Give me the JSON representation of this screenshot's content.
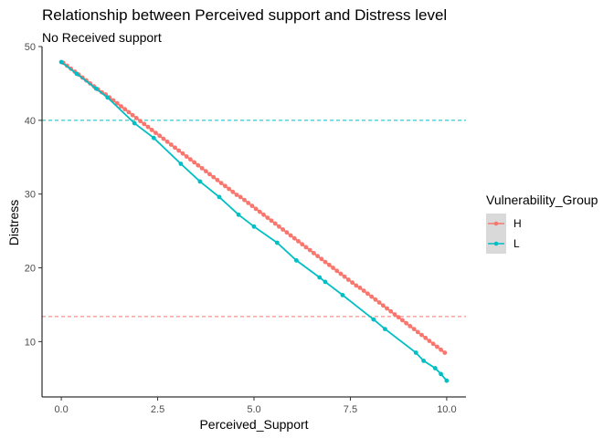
{
  "chart_data": {
    "type": "scatter",
    "title": "Relationship between Perceived support and Distress level",
    "subtitle": "No Received support",
    "xlabel": "Perceived_Support",
    "ylabel": "Distress",
    "xlim": [
      -0.5,
      10.5
    ],
    "ylim": [
      2.5,
      50
    ],
    "x_ticks": [
      0,
      2.5,
      5,
      7.5,
      10
    ],
    "x_tick_labels": [
      "0.0",
      "2.5",
      "5.0",
      "7.5",
      "10.0"
    ],
    "y_ticks": [
      10,
      20,
      30,
      40,
      50
    ],
    "y_tick_labels": [
      "10",
      "20",
      "30",
      "40",
      "50"
    ],
    "grid": false,
    "legend": {
      "title": "Vulnerability_Group",
      "placement": "right"
    },
    "series": [
      {
        "name": "H",
        "color": "#F8766D",
        "x": [
          0.05,
          0.15,
          0.25,
          0.35,
          0.45,
          0.55,
          0.65,
          0.75,
          0.85,
          0.95,
          1.05,
          1.15,
          1.25,
          1.35,
          1.45,
          1.55,
          1.65,
          1.75,
          1.85,
          1.95,
          2.05,
          2.15,
          2.25,
          2.35,
          2.45,
          2.55,
          2.65,
          2.75,
          2.85,
          2.95,
          3.05,
          3.15,
          3.25,
          3.35,
          3.45,
          3.55,
          3.65,
          3.75,
          3.85,
          3.95,
          4.05,
          4.15,
          4.25,
          4.35,
          4.45,
          4.55,
          4.65,
          4.75,
          4.85,
          4.95,
          5.05,
          5.15,
          5.25,
          5.35,
          5.45,
          5.55,
          5.65,
          5.75,
          5.85,
          5.95,
          6.05,
          6.15,
          6.25,
          6.35,
          6.45,
          6.55,
          6.65,
          6.75,
          6.85,
          6.95,
          7.05,
          7.15,
          7.25,
          7.35,
          7.45,
          7.55,
          7.65,
          7.75,
          7.85,
          7.95,
          8.05,
          8.15,
          8.25,
          8.35,
          8.45,
          8.55,
          8.65,
          8.75,
          8.85,
          8.95,
          9.05,
          9.15,
          9.25,
          9.35,
          9.45,
          9.55,
          9.65,
          9.75,
          9.85,
          9.95
        ],
        "y": [
          47.8,
          47.4,
          47.0,
          46.6,
          46.2,
          45.8,
          45.4,
          45.0,
          44.6,
          44.2,
          43.8,
          43.5,
          43.1,
          42.7,
          42.3,
          41.9,
          41.5,
          41.1,
          40.7,
          40.3,
          39.9,
          39.5,
          39.1,
          38.7,
          38.3,
          37.9,
          37.5,
          37.1,
          36.7,
          36.3,
          35.9,
          35.5,
          35.1,
          34.7,
          34.3,
          33.9,
          33.5,
          33.1,
          32.7,
          32.3,
          31.9,
          31.5,
          31.1,
          30.7,
          30.3,
          29.9,
          29.6,
          29.2,
          28.8,
          28.4,
          28.0,
          27.6,
          27.2,
          26.8,
          26.4,
          26.0,
          25.6,
          25.2,
          24.8,
          24.4,
          24.0,
          23.6,
          23.2,
          22.8,
          22.4,
          22.0,
          21.6,
          21.2,
          20.8,
          20.4,
          20.0,
          19.6,
          19.2,
          18.8,
          18.4,
          18.0,
          17.6,
          17.3,
          16.9,
          16.5,
          16.1,
          15.7,
          15.3,
          14.9,
          14.5,
          14.1,
          13.7,
          13.3,
          12.9,
          12.5,
          12.1,
          11.7,
          11.3,
          10.9,
          10.5,
          10.1,
          9.7,
          9.3,
          8.9,
          8.5
        ]
      },
      {
        "name": "L",
        "color": "#00BFC4",
        "x": [
          0.0,
          0.4,
          0.9,
          1.2,
          1.9,
          2.4,
          3.1,
          3.6,
          4.1,
          4.6,
          5.0,
          5.6,
          6.1,
          6.7,
          6.85,
          7.3,
          8.1,
          8.4,
          9.2,
          9.4,
          9.7,
          9.85,
          10.0
        ],
        "y": [
          47.9,
          46.3,
          44.3,
          43.1,
          39.6,
          37.6,
          34.1,
          31.7,
          29.6,
          27.2,
          25.6,
          23.4,
          21.0,
          18.7,
          18.1,
          16.3,
          13.0,
          11.7,
          8.5,
          7.4,
          6.4,
          5.6,
          4.7
        ]
      }
    ],
    "reference_lines": [
      {
        "axis": "y",
        "value": 40,
        "color": "#00BFC4",
        "style": "dashed"
      },
      {
        "axis": "y",
        "value": 13.4,
        "color": "#F8766D",
        "style": "dashed"
      }
    ]
  }
}
